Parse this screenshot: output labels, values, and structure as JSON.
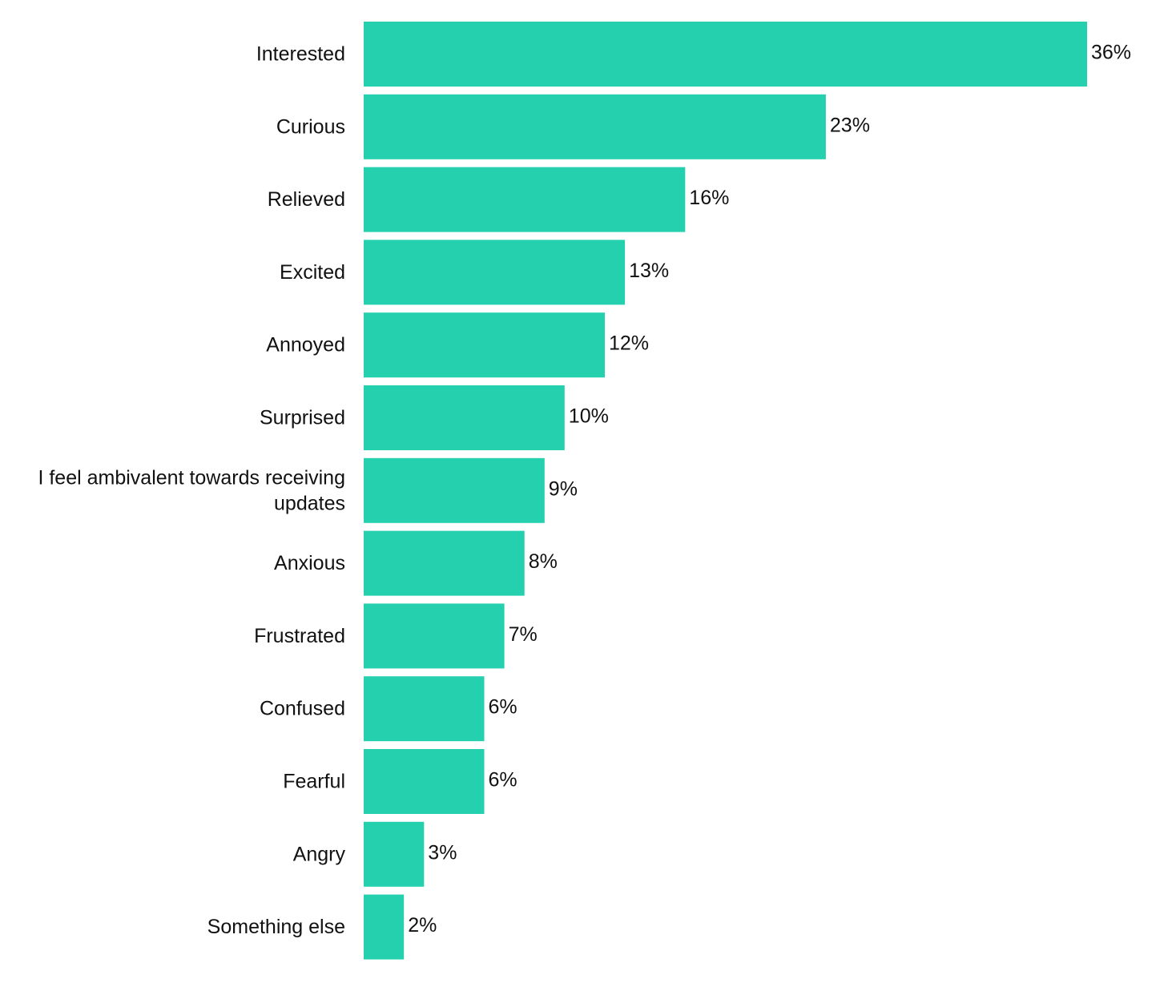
{
  "chart_data": {
    "type": "bar",
    "orientation": "horizontal",
    "title": "",
    "xlabel": "",
    "ylabel": "",
    "unit": "%",
    "bar_color": "#25d0ae",
    "grid": false,
    "legend": "none",
    "xlim": [
      0,
      36
    ],
    "categories": [
      [
        "Interested"
      ],
      [
        "Curious"
      ],
      [
        "Relieved"
      ],
      [
        "Excited"
      ],
      [
        "Annoyed"
      ],
      [
        "Surprised"
      ],
      [
        "I feel ambivalent towards receiving",
        "updates"
      ],
      [
        "Anxious"
      ],
      [
        "Frustrated"
      ],
      [
        "Confused"
      ],
      [
        "Fearful"
      ],
      [
        "Angry"
      ],
      [
        "Something else"
      ]
    ],
    "values": [
      36,
      23,
      16,
      13,
      12,
      10,
      9,
      8,
      7,
      6,
      6,
      3,
      2
    ],
    "value_labels": [
      "36%",
      "23%",
      "16%",
      "13%",
      "12%",
      "10%",
      "9%",
      "8%",
      "7%",
      "6%",
      "6%",
      "3%",
      "2%"
    ]
  }
}
